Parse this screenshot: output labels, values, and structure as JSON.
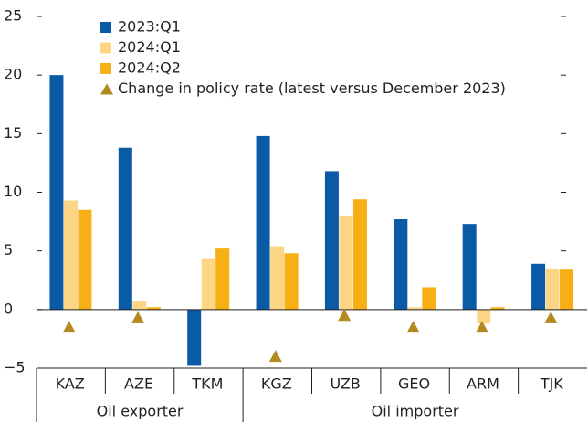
{
  "chart_data": {
    "type": "bar",
    "categories": [
      "KAZ",
      "AZE",
      "TKM",
      "KGZ",
      "UZB",
      "GEO",
      "ARM",
      "TJK"
    ],
    "groups": [
      "Oil exporter",
      "Oil importer"
    ],
    "series": [
      {
        "name": "2023:Q1",
        "color": "#0b5aa6",
        "values": [
          20,
          13.8,
          -4.8,
          14.8,
          11.8,
          7.7,
          7.3,
          3.9
        ]
      },
      {
        "name": "2024:Q1",
        "color": "#fdd685",
        "values": [
          9.3,
          0.7,
          4.3,
          5.4,
          8.0,
          0.2,
          -1.2,
          3.5
        ]
      },
      {
        "name": "2024:Q2",
        "color": "#f6b015",
        "values": [
          8.5,
          0.2,
          5.2,
          4.8,
          9.4,
          1.9,
          0.2,
          3.4
        ]
      },
      {
        "name": "Change in policy rate (latest versus December 2023)",
        "color": "#b38a20",
        "marker": "triangle",
        "values": [
          -1.5,
          -0.7,
          null,
          -4.0,
          -0.5,
          -1.5,
          -1.5,
          -0.7
        ]
      }
    ],
    "ylim": [
      -5,
      25
    ],
    "yticks": [
      {
        "value": -5,
        "label": "−5"
      },
      0,
      5,
      10,
      15,
      20,
      25
    ]
  }
}
